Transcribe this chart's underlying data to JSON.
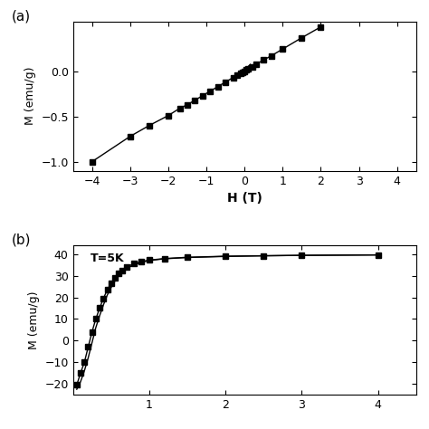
{
  "panel_a": {
    "ylabel": "M (emu/g)",
    "xlabel": "H (T)",
    "xlim": [
      -4.5,
      4.5
    ],
    "ylim": [
      -1.1,
      0.55
    ],
    "yticks": [
      -1.0,
      -0.5,
      0.0
    ],
    "xticks": [
      -4,
      -3,
      -2,
      -1,
      0,
      1,
      2,
      3,
      4
    ],
    "line_color": "black",
    "marker": "s",
    "marker_color": "black",
    "marker_size": 4,
    "h_main": [
      -4.0,
      -3.0,
      -2.5,
      -2.0,
      -1.7,
      -1.5,
      -1.3,
      -1.1,
      -0.9,
      -0.7,
      -0.5,
      -0.3,
      -0.2,
      -0.1,
      -0.05,
      0.0,
      0.05,
      0.1,
      0.2,
      0.3,
      0.5,
      0.7,
      1.0,
      1.5,
      2.0
    ],
    "m_main": [
      -1.0,
      -0.72,
      -0.6,
      -0.49,
      -0.41,
      -0.37,
      -0.32,
      -0.27,
      -0.22,
      -0.17,
      -0.12,
      -0.07,
      -0.045,
      -0.022,
      -0.01,
      0.0,
      0.012,
      0.025,
      0.05,
      0.075,
      0.125,
      0.17,
      0.245,
      0.37,
      0.49
    ],
    "h_loop_upper": [
      -0.12,
      -0.09,
      -0.06,
      -0.03,
      0.0,
      0.03,
      0.06,
      0.09,
      0.12,
      0.15
    ],
    "m_loop_upper": [
      -0.032,
      -0.018,
      -0.007,
      0.002,
      0.01,
      0.022,
      0.035,
      0.048,
      0.062,
      0.075
    ],
    "h_loop_lower": [
      -0.12,
      -0.09,
      -0.06,
      -0.03,
      0.0,
      0.03,
      0.06,
      0.09,
      0.12,
      0.15
    ],
    "m_loop_lower": [
      -0.048,
      -0.032,
      -0.018,
      -0.006,
      0.005,
      0.017,
      0.03,
      0.043,
      0.057,
      0.07
    ]
  },
  "panel_b": {
    "ylabel": "M (emu/g)",
    "xlabel": "",
    "xlim": [
      0.0,
      4.5
    ],
    "ylim": [
      -25,
      44
    ],
    "yticks": [
      -20,
      -10,
      0,
      10,
      20,
      30,
      40
    ],
    "xticks": [
      1,
      2,
      3,
      4
    ],
    "label": "T=5K",
    "line_color": "black",
    "marker": "s",
    "marker_color": "black",
    "marker_size": 4,
    "h_branch1": [
      0.05,
      0.1,
      0.15,
      0.2,
      0.25,
      0.3,
      0.35,
      0.4,
      0.45,
      0.5,
      0.55,
      0.6,
      0.65,
      0.7,
      0.8,
      0.9,
      1.0,
      1.2,
      1.5,
      2.0,
      2.5,
      3.0,
      4.0
    ],
    "m_branch1": [
      -20.5,
      -15.0,
      -10.0,
      -3.0,
      4.0,
      10.0,
      15.0,
      19.5,
      23.5,
      26.5,
      29.0,
      31.0,
      32.5,
      34.0,
      35.5,
      36.5,
      37.2,
      37.9,
      38.5,
      39.0,
      39.2,
      39.4,
      39.6
    ],
    "h_branch2": [
      0.05,
      0.1,
      0.15,
      0.2,
      0.25,
      0.3,
      0.35,
      0.4,
      0.45,
      0.5,
      0.55,
      0.6,
      0.65,
      0.7,
      0.8,
      0.9,
      1.0,
      1.2,
      1.5,
      2.0,
      2.5,
      3.0,
      4.0
    ],
    "m_branch2": [
      -22.5,
      -19.0,
      -14.0,
      -8.0,
      -1.0,
      6.0,
      11.5,
      16.5,
      21.0,
      24.5,
      27.5,
      30.0,
      31.8,
      33.3,
      35.0,
      36.2,
      37.0,
      37.8,
      38.4,
      38.9,
      39.2,
      39.4,
      39.6
    ]
  },
  "background_color": "#ffffff",
  "label_a": "(a)",
  "label_b": "(b)"
}
